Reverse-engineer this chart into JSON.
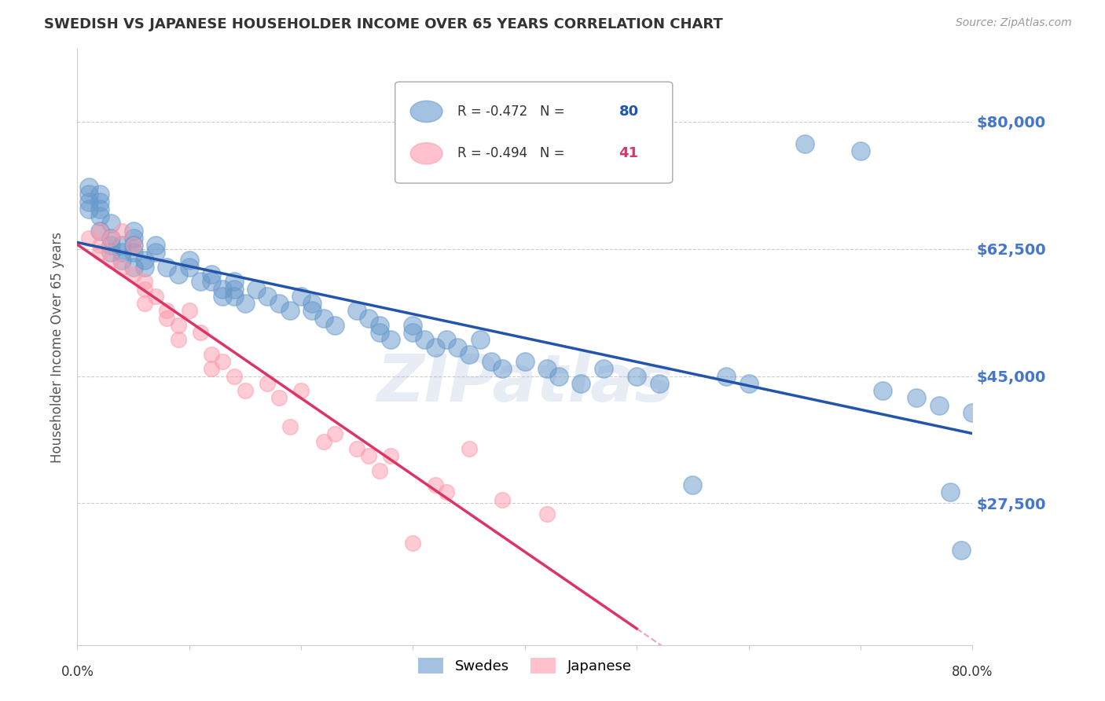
{
  "title": "SWEDISH VS JAPANESE HOUSEHOLDER INCOME OVER 65 YEARS CORRELATION CHART",
  "source": "Source: ZipAtlas.com",
  "ylabel": "Householder Income Over 65 years",
  "background_color": "#ffffff",
  "grid_color": "#cccccc",
  "blue_color": "#6699cc",
  "pink_color": "#ff99aa",
  "blue_line_color": "#2255aa",
  "pink_line_color": "#dd3366",
  "ytick_color": "#4477cc",
  "yticks": [
    27500,
    45000,
    62500,
    80000
  ],
  "ytick_labels": [
    "$27,500",
    "$45,000",
    "$62,500",
    "$80,000"
  ],
  "xticks": [
    0.0,
    0.1,
    0.2,
    0.3,
    0.4,
    0.5,
    0.6,
    0.7,
    0.8
  ],
  "xlim": [
    0.0,
    0.8
  ],
  "ylim": [
    8000,
    90000
  ],
  "legend_R_blue": "R = -0.472",
  "legend_N_blue": "80",
  "legend_R_pink": "R = -0.494",
  "legend_N_pink": "41",
  "watermark": "ZIPatlas",
  "swedes_x": [
    0.01,
    0.01,
    0.01,
    0.01,
    0.02,
    0.02,
    0.02,
    0.02,
    0.02,
    0.03,
    0.03,
    0.03,
    0.03,
    0.04,
    0.04,
    0.04,
    0.05,
    0.05,
    0.05,
    0.05,
    0.05,
    0.06,
    0.06,
    0.07,
    0.07,
    0.08,
    0.09,
    0.1,
    0.1,
    0.11,
    0.12,
    0.12,
    0.13,
    0.13,
    0.14,
    0.14,
    0.14,
    0.15,
    0.16,
    0.17,
    0.18,
    0.19,
    0.2,
    0.21,
    0.21,
    0.22,
    0.23,
    0.25,
    0.26,
    0.27,
    0.27,
    0.28,
    0.3,
    0.3,
    0.31,
    0.32,
    0.33,
    0.34,
    0.35,
    0.36,
    0.37,
    0.38,
    0.4,
    0.42,
    0.43,
    0.45,
    0.47,
    0.5,
    0.52,
    0.55,
    0.58,
    0.6,
    0.65,
    0.7,
    0.72,
    0.75,
    0.77,
    0.78,
    0.79,
    0.8
  ],
  "swedes_y": [
    69000,
    71000,
    70000,
    68000,
    70000,
    69000,
    68000,
    67000,
    65000,
    66000,
    64000,
    63000,
    62000,
    61000,
    63000,
    62000,
    65000,
    64000,
    63000,
    62000,
    60000,
    61000,
    60000,
    63000,
    62000,
    60000,
    59000,
    61000,
    60000,
    58000,
    59000,
    58000,
    57000,
    56000,
    58000,
    57000,
    56000,
    55000,
    57000,
    56000,
    55000,
    54000,
    56000,
    55000,
    54000,
    53000,
    52000,
    54000,
    53000,
    52000,
    51000,
    50000,
    52000,
    51000,
    50000,
    49000,
    50000,
    49000,
    48000,
    50000,
    47000,
    46000,
    47000,
    46000,
    45000,
    44000,
    46000,
    45000,
    44000,
    30000,
    45000,
    44000,
    77000,
    76000,
    43000,
    42000,
    41000,
    29000,
    21000,
    40000
  ],
  "japanese_x": [
    0.01,
    0.02,
    0.02,
    0.02,
    0.03,
    0.03,
    0.04,
    0.04,
    0.05,
    0.05,
    0.06,
    0.06,
    0.06,
    0.07,
    0.08,
    0.08,
    0.09,
    0.09,
    0.1,
    0.11,
    0.12,
    0.12,
    0.13,
    0.14,
    0.15,
    0.17,
    0.18,
    0.19,
    0.2,
    0.22,
    0.23,
    0.25,
    0.26,
    0.27,
    0.28,
    0.3,
    0.32,
    0.33,
    0.35,
    0.38,
    0.42
  ],
  "japanese_y": [
    64000,
    65000,
    63000,
    62000,
    64000,
    61000,
    65000,
    60000,
    63000,
    59000,
    58000,
    57000,
    55000,
    56000,
    54000,
    53000,
    52000,
    50000,
    54000,
    51000,
    48000,
    46000,
    47000,
    45000,
    43000,
    44000,
    42000,
    38000,
    43000,
    36000,
    37000,
    35000,
    34000,
    32000,
    34000,
    22000,
    30000,
    29000,
    35000,
    28000,
    26000
  ]
}
